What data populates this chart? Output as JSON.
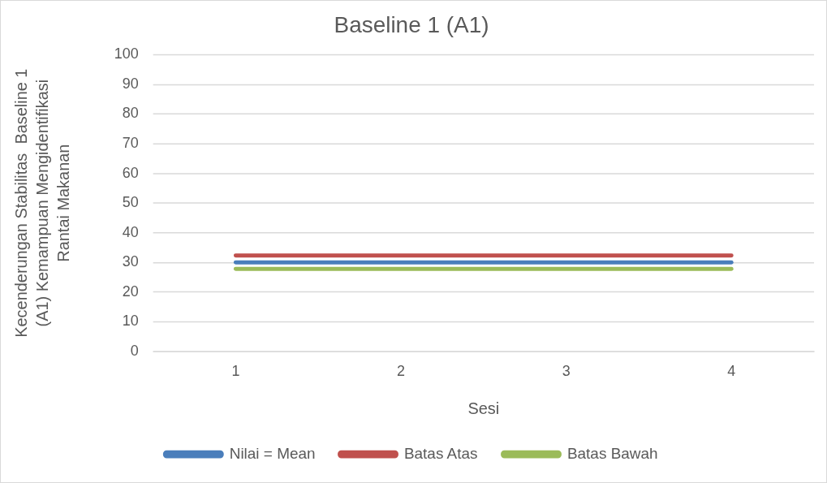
{
  "chart_data": {
    "type": "line",
    "title": "Baseline 1 (A1)",
    "xlabel": "Sesi",
    "ylabel": "Kecenderungan Stabilitas  Baseline 1 (A1) Kemampuan Mengidentifikasi Rantai Makanan",
    "categories": [
      "1",
      "2",
      "3",
      "4"
    ],
    "series": [
      {
        "name": "Nilai = Mean",
        "color": "#4a7ebb",
        "values": [
          30,
          30,
          30,
          30
        ]
      },
      {
        "name": "Batas Atas",
        "color": "#c0504d",
        "values": [
          32.3,
          32.3,
          32.3,
          32.3
        ]
      },
      {
        "name": "Batas Bawah",
        "color": "#9bbb59",
        "values": [
          27.8,
          27.8,
          27.8,
          27.8
        ]
      }
    ],
    "ylim": [
      0,
      100
    ],
    "yticks": [
      0,
      10,
      20,
      30,
      40,
      50,
      60,
      70,
      80,
      90,
      100
    ],
    "grid": "y",
    "legend": "bottom",
    "marker": "none",
    "line_style": "solid"
  }
}
